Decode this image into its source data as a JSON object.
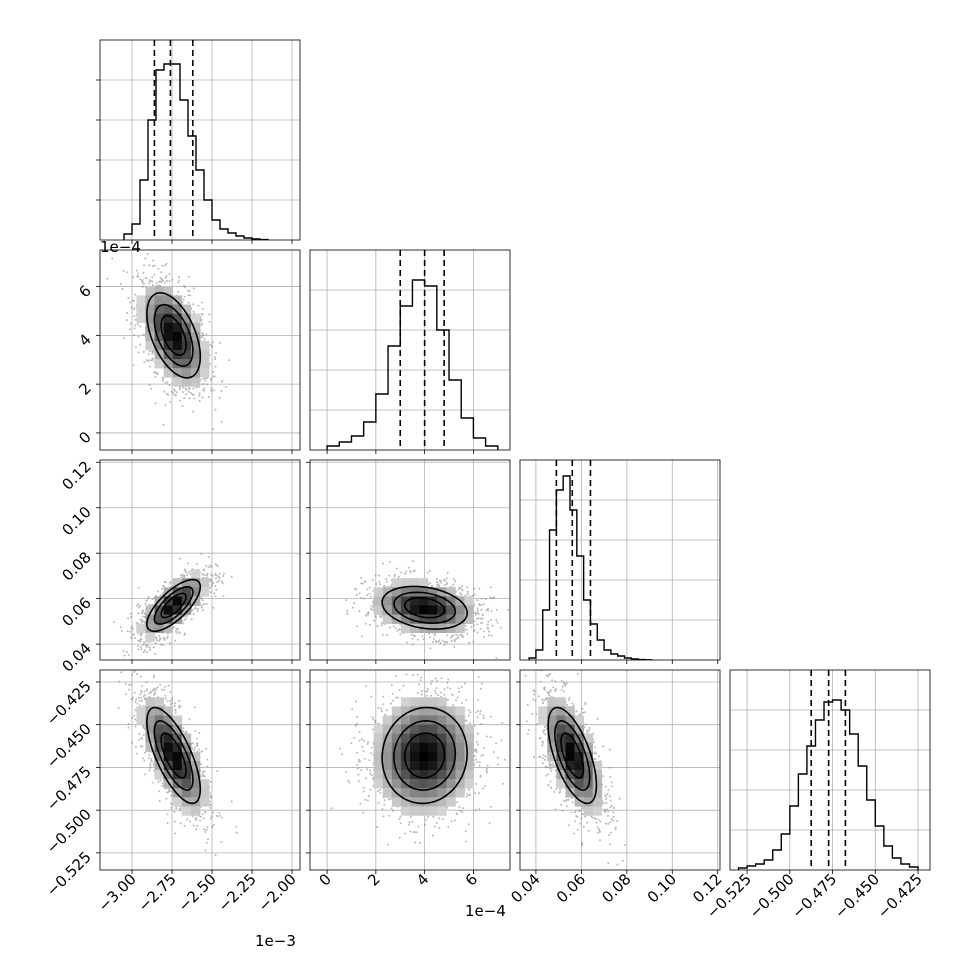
{
  "chart_data": {
    "type": "corner",
    "grid": true,
    "parameters": [
      {
        "index": 0,
        "range": [
          -3.2,
          -1.95
        ],
        "ticks": [
          -3.0,
          -2.75,
          -2.5,
          -2.25,
          -2.0
        ],
        "tick_labels": [
          "−3.00",
          "−2.75",
          "−2.50",
          "−2.25",
          "−2.00"
        ],
        "offset_label": "1e−3",
        "quantiles": [
          -2.86,
          -2.76,
          -2.62
        ],
        "peak": [
          -2.76,
          0.000412
        ],
        "std": [
          0.115,
          0.000118
        ],
        "corr": -0.55
      },
      {
        "index": 1,
        "range": [
          -7e-05,
          0.00075
        ],
        "ticks": [
          0,
          0.0002,
          0.0004,
          0.0006
        ],
        "tick_labels": [
          "0",
          "2",
          "4",
          "6"
        ],
        "y_tick_labels": [
          "0",
          "2",
          "4",
          "6"
        ],
        "offset_label": "1e−4",
        "quantiles": [
          0.0003,
          0.0004,
          0.00048
        ]
      },
      {
        "index": 2,
        "range": [
          0.033,
          0.121
        ],
        "ticks": [
          0.04,
          0.06,
          0.08,
          0.1,
          0.12
        ],
        "tick_labels": [
          "0.04",
          "0.06",
          "0.08",
          "0.10",
          "0.12"
        ],
        "y_tick_labels": [
          "0.04",
          "0.06",
          "0.08",
          "0.10",
          "0.12"
        ],
        "quantiles": [
          0.049,
          0.056,
          0.064
        ]
      },
      {
        "index": 3,
        "range": [
          -0.535,
          -0.418
        ],
        "ticks": [
          -0.525,
          -0.5,
          -0.475,
          -0.45,
          -0.425
        ],
        "tick_labels": [
          "−0.525",
          "−0.500",
          "−0.475",
          "−0.450",
          "−0.425"
        ],
        "y_tick_labels": [
          "−0.525",
          "−0.500",
          "−0.475",
          "−0.450",
          "−0.425"
        ],
        "quantiles": [
          -0.4875,
          -0.4773,
          -0.4675
        ]
      }
    ],
    "histograms": [
      {
        "param": 0,
        "bin_edges": [
          -3.05,
          -3.0,
          -2.95,
          -2.9,
          -2.85,
          -2.8,
          -2.75,
          -2.7,
          -2.65,
          -2.6,
          -2.55,
          -2.5,
          -2.45,
          -2.4,
          -2.35,
          -2.3,
          -2.25,
          -2.2,
          -2.15
        ],
        "counts": [
          0.03,
          0.08,
          0.3,
          0.6,
          0.85,
          0.88,
          0.88,
          0.7,
          0.52,
          0.35,
          0.2,
          0.1,
          0.055,
          0.035,
          0.02,
          0.01,
          0.005,
          0.002
        ]
      },
      {
        "param": 1,
        "bin_edges": [
          0.0,
          5e-05,
          0.0001,
          0.00015,
          0.0002,
          0.00025,
          0.0003,
          0.00035,
          0.0004,
          0.00045,
          0.0005,
          0.00055,
          0.0006,
          0.00065,
          0.0007
        ],
        "counts": [
          0.02,
          0.04,
          0.07,
          0.14,
          0.28,
          0.52,
          0.72,
          0.85,
          0.82,
          0.6,
          0.35,
          0.16,
          0.06,
          0.02
        ]
      },
      {
        "param": 2,
        "bin_edges": [
          0.037,
          0.04,
          0.043,
          0.046,
          0.049,
          0.052,
          0.055,
          0.058,
          0.061,
          0.064,
          0.067,
          0.07,
          0.073,
          0.076,
          0.079,
          0.082,
          0.085,
          0.088,
          0.091
        ],
        "counts": [
          0.01,
          0.05,
          0.25,
          0.65,
          0.85,
          0.92,
          0.75,
          0.52,
          0.3,
          0.18,
          0.1,
          0.05,
          0.03,
          0.02,
          0.01,
          0.005,
          0.002,
          0.001
        ]
      },
      {
        "param": 3,
        "bin_edges": [
          -0.53,
          -0.525,
          -0.52,
          -0.515,
          -0.51,
          -0.505,
          -0.5,
          -0.495,
          -0.49,
          -0.485,
          -0.48,
          -0.475,
          -0.47,
          -0.465,
          -0.46,
          -0.455,
          -0.45,
          -0.445,
          -0.44,
          -0.435,
          -0.43,
          -0.425
        ],
        "counts": [
          0.01,
          0.02,
          0.03,
          0.05,
          0.1,
          0.18,
          0.32,
          0.48,
          0.62,
          0.75,
          0.84,
          0.85,
          0.8,
          0.68,
          0.52,
          0.35,
          0.22,
          0.12,
          0.06,
          0.03,
          0.015
        ]
      }
    ],
    "pairs": [
      {
        "x_param": 0,
        "y_param": 1,
        "mean": [
          -2.74,
          0.0004
        ],
        "std": [
          0.11,
          0.000115
        ],
        "corr": -0.5
      },
      {
        "x_param": 0,
        "y_param": 2,
        "mean": [
          -2.74,
          0.057
        ],
        "std": [
          0.11,
          0.0075
        ],
        "corr": 0.72
      },
      {
        "x_param": 1,
        "y_param": 2,
        "mean": [
          0.0004,
          0.056
        ],
        "std": [
          0.000115,
          0.0062
        ],
        "corr": -0.25
      },
      {
        "x_param": 0,
        "y_param": 3,
        "mean": [
          -2.74,
          -0.468
        ],
        "std": [
          0.11,
          0.0185
        ],
        "corr": -0.7
      },
      {
        "x_param": 1,
        "y_param": 3,
        "mean": [
          0.0004,
          -0.468
        ],
        "std": [
          0.000115,
          0.0185
        ],
        "corr": 0.05
      },
      {
        "x_param": 2,
        "y_param": 3,
        "mean": [
          0.056,
          -0.468
        ],
        "std": [
          0.007,
          0.0185
        ],
        "corr": -0.62
      }
    ],
    "colors": {
      "axes": "#000000",
      "grid": "#b0b0b0",
      "scatter": "#7f7f7f",
      "contour": "#000000",
      "density_max": "#000000"
    }
  }
}
